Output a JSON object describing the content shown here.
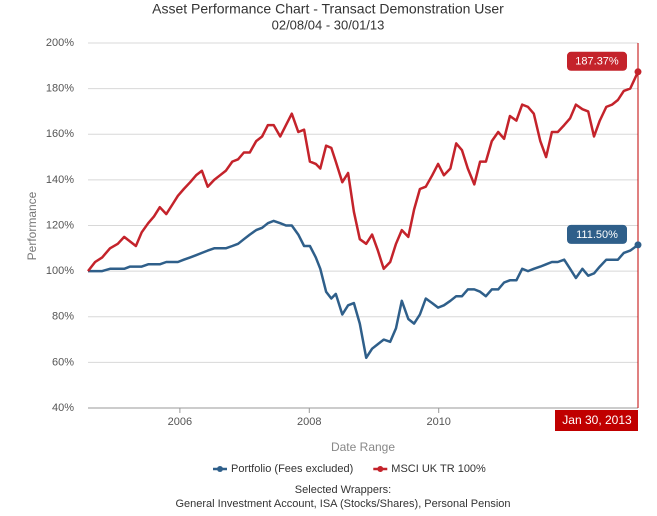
{
  "chart_data": {
    "type": "line",
    "title": "Asset Performance Chart - Transact Demonstration User",
    "subtitle": "02/08/04 - 30/01/13",
    "y_label": "Performance",
    "x_label": "Date Range",
    "crosshair_label": "Jan 30, 2013",
    "footer_title": "Selected Wrappers:",
    "footer_text": "General Investment Account, ISA (Stocks/Shares), Personal Pension",
    "x": [
      2004.58,
      2004.69,
      2004.8,
      2004.92,
      2005.04,
      2005.14,
      2005.23,
      2005.32,
      2005.41,
      2005.51,
      2005.6,
      2005.69,
      2005.79,
      2005.88,
      2005.97,
      2006.06,
      2006.16,
      2006.25,
      2006.34,
      2006.43,
      2006.53,
      2006.62,
      2006.71,
      2006.81,
      2006.9,
      2006.99,
      2007.08,
      2007.18,
      2007.27,
      2007.36,
      2007.45,
      2007.55,
      2007.64,
      2007.73,
      2007.83,
      2007.92,
      2008.01,
      2008.1,
      2008.17,
      2008.26,
      2008.34,
      2008.41,
      2008.51,
      2008.6,
      2008.69,
      2008.78,
      2008.88,
      2008.97,
      2009.06,
      2009.15,
      2009.25,
      2009.34,
      2009.43,
      2009.53,
      2009.62,
      2009.71,
      2009.8,
      2009.9,
      2009.99,
      2010.08,
      2010.18,
      2010.27,
      2010.36,
      2010.45,
      2010.55,
      2010.64,
      2010.73,
      2010.82,
      2010.92,
      2011.01,
      2011.1,
      2011.2,
      2011.29,
      2011.38,
      2011.47,
      2011.57,
      2011.66,
      2011.75,
      2011.84,
      2011.94,
      2012.03,
      2012.12,
      2012.22,
      2012.31,
      2012.4,
      2012.49,
      2012.59,
      2012.68,
      2012.77,
      2012.86,
      2012.96,
      2013.08
    ],
    "series": [
      {
        "name": "Portfolio (Fees excluded)",
        "color": "#2f5f8a",
        "values": [
          100,
          100,
          100,
          101,
          101,
          101,
          102,
          102,
          102,
          103,
          103,
          103,
          104,
          104,
          104,
          105,
          106,
          107,
          108,
          109,
          110,
          110,
          110,
          111,
          112,
          114,
          116,
          118,
          119,
          121,
          122,
          121,
          120,
          120,
          116,
          111,
          111,
          106,
          101,
          91,
          88,
          90,
          81,
          85,
          86,
          77,
          62,
          66,
          68,
          70,
          69,
          75,
          87,
          79,
          77,
          81,
          88,
          86,
          84,
          85,
          87,
          89,
          89,
          92,
          92,
          91,
          89,
          92,
          92,
          95,
          96,
          96,
          101,
          100,
          101,
          102,
          103,
          104,
          104,
          105,
          101,
          97,
          101,
          98,
          99,
          102,
          105,
          105,
          105,
          108,
          109,
          111.5
        ],
        "value_labels": [
          null,
          null,
          null,
          null,
          null,
          null,
          null,
          null,
          null,
          null,
          null,
          null,
          null,
          null,
          null,
          null,
          null,
          null,
          null,
          null,
          null,
          null,
          null,
          null,
          null,
          null,
          null,
          null,
          null,
          null,
          null,
          null,
          null,
          null,
          null,
          null,
          null,
          null,
          null,
          null,
          null,
          null,
          null,
          null,
          null,
          null,
          null,
          null,
          null,
          null,
          null,
          null,
          null,
          null,
          null,
          null,
          null,
          null,
          null,
          null,
          null,
          null,
          null,
          null,
          null,
          null,
          null,
          null,
          null,
          null,
          null,
          null,
          null,
          null,
          null,
          null,
          null,
          null,
          null,
          null,
          null,
          null,
          null,
          null,
          null,
          null,
          null,
          null,
          null,
          null,
          null,
          "111.50%"
        ]
      },
      {
        "name": "MSCI UK TR 100%",
        "color": "#c4232b",
        "values": [
          100,
          104,
          106,
          110,
          112,
          115,
          113,
          111,
          117,
          121,
          124,
          128,
          125,
          129,
          133,
          136,
          139,
          142,
          144,
          137,
          140,
          142,
          144,
          148,
          149,
          152,
          152,
          157,
          159,
          164,
          164,
          159,
          164,
          169,
          161,
          162,
          148,
          147,
          145,
          155,
          154,
          148,
          139,
          143,
          126,
          114,
          112,
          116,
          109,
          101,
          104,
          112,
          118,
          115,
          127,
          136,
          137,
          142,
          147,
          142,
          145,
          156,
          153,
          145,
          138,
          148,
          148,
          157,
          161,
          158,
          168,
          166,
          173,
          172,
          169,
          157,
          150,
          161,
          161,
          164,
          167,
          173,
          171,
          170,
          159,
          166,
          172,
          173,
          175,
          179,
          180,
          187.37
        ],
        "value_labels": [
          null,
          null,
          null,
          null,
          null,
          null,
          null,
          null,
          null,
          null,
          null,
          null,
          null,
          null,
          null,
          null,
          null,
          null,
          null,
          null,
          null,
          null,
          null,
          null,
          null,
          null,
          null,
          null,
          null,
          null,
          null,
          null,
          null,
          null,
          null,
          null,
          null,
          null,
          null,
          null,
          null,
          null,
          null,
          null,
          null,
          null,
          null,
          null,
          null,
          null,
          null,
          null,
          null,
          null,
          null,
          null,
          null,
          null,
          null,
          null,
          null,
          null,
          null,
          null,
          null,
          null,
          null,
          null,
          null,
          null,
          null,
          null,
          null,
          null,
          null,
          null,
          null,
          null,
          null,
          null,
          null,
          null,
          null,
          null,
          null,
          null,
          null,
          null,
          null,
          null,
          null,
          "187.37%"
        ]
      }
    ],
    "xlim": [
      2004.58,
      2013.08
    ],
    "xticks": [
      2006,
      2008,
      2010
    ],
    "ylim": [
      40,
      200
    ],
    "yticks": [
      {
        "value": 40,
        "label": "40%"
      },
      {
        "value": 60,
        "label": "60%"
      },
      {
        "value": 80,
        "label": "80%"
      },
      {
        "value": 100,
        "label": "100%"
      },
      {
        "value": 120,
        "label": "120%"
      },
      {
        "value": 140,
        "label": "140%"
      },
      {
        "value": 160,
        "label": "160%"
      },
      {
        "value": 180,
        "label": "180%"
      },
      {
        "value": 200,
        "label": "200%"
      }
    ],
    "grid": true
  }
}
